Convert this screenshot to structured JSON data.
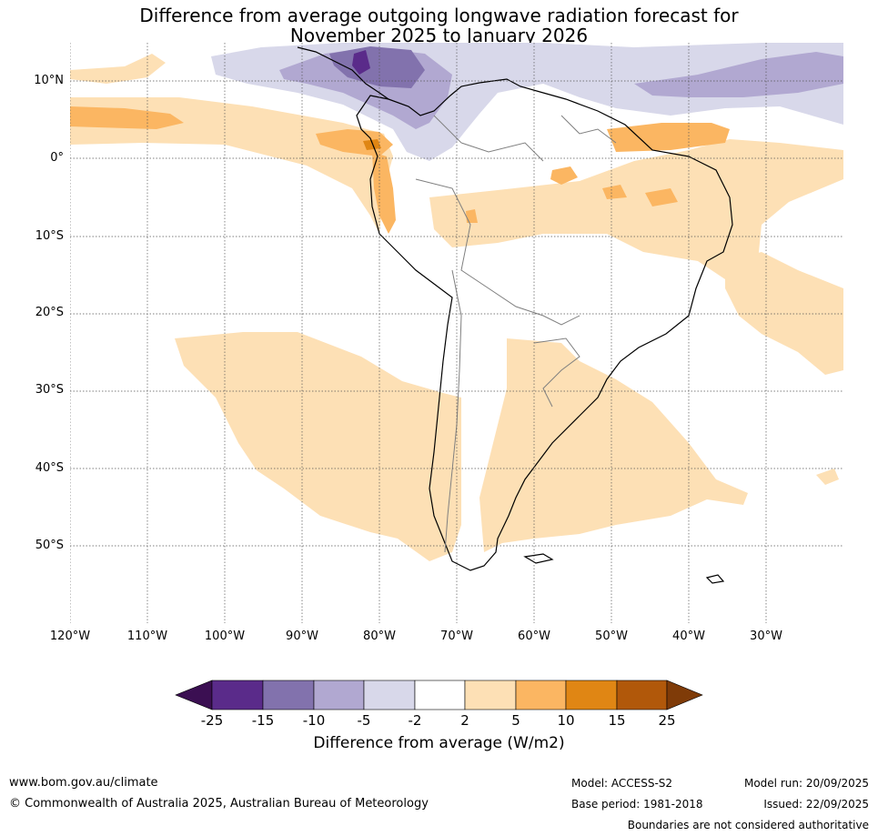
{
  "title": {
    "line1": "Difference from average outgoing longwave radiation forecast for",
    "line2": "November 2025 to January 2026"
  },
  "map": {
    "lon_range": [
      -120,
      -20
    ],
    "lat_range": [
      -60,
      15
    ],
    "lat_labels": [
      "10°N",
      "0°",
      "10°S",
      "20°S",
      "30°S",
      "40°S",
      "50°S"
    ],
    "lon_labels": [
      "120°W",
      "110°W",
      "100°W",
      "90°W",
      "80°W",
      "70°W",
      "60°W",
      "50°W",
      "40°W",
      "30°W"
    ]
  },
  "colorbar": {
    "title": "Difference from average (W/m2)",
    "ticks": [
      "-25",
      "-15",
      "-10",
      "-5",
      "-2",
      "2",
      "5",
      "10",
      "15",
      "25"
    ],
    "colors": [
      "#3b0f52",
      "#5a2b8a",
      "#8272ad",
      "#b1a8d1",
      "#d8d8ea",
      "#ffffff",
      "#fde0b5",
      "#fbb662",
      "#e08614",
      "#b1580a",
      "#7f3b08"
    ]
  },
  "footer": {
    "website": "www.bom.gov.au/climate",
    "copyright": "© Commonwealth of Australia 2025, Australian Bureau of Meteorology",
    "model": "Model: ACCESS-S2",
    "base_period": "Base period: 1981-2018",
    "model_run": "Model run: 20/09/2025",
    "issued": "Issued: 22/09/2025",
    "disclaimer": "Boundaries are not considered authoritative"
  }
}
